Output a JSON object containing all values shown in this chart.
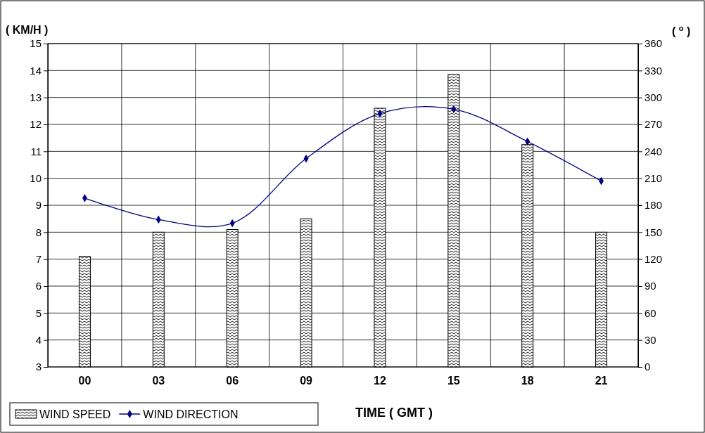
{
  "chart_data": {
    "type": "bar",
    "xlabel": "TIME ( GMT )",
    "ylabel": "( KM/H )",
    "y2label": "( $^{o}$ )",
    "categories": [
      "00",
      "03",
      "06",
      "09",
      "12",
      "15",
      "18",
      "21"
    ],
    "series": [
      {
        "name": "WIND SPEED",
        "color": "#000000",
        "values": [
          7.1,
          8.0,
          8.1,
          8.5,
          12.6,
          13.85,
          11.25,
          8.0
        ]
      },
      {
        "name": "WIND DIRECTION",
        "type": "line",
        "axis": "y2",
        "color": "#000080",
        "marker": "diamond",
        "values": [
          188,
          164,
          160,
          232,
          282,
          287,
          251,
          207
        ]
      }
    ],
    "ylim": [
      3,
      15
    ],
    "yticks": [
      3,
      4,
      5,
      6,
      7,
      8,
      9,
      10,
      11,
      12,
      13,
      14,
      15
    ],
    "y2lim": [
      0,
      360
    ],
    "y2ticks": [
      0,
      30,
      60,
      90,
      120,
      150,
      180,
      210,
      240,
      270,
      300,
      330,
      360
    ],
    "grid": true,
    "legend": "bottom left"
  }
}
